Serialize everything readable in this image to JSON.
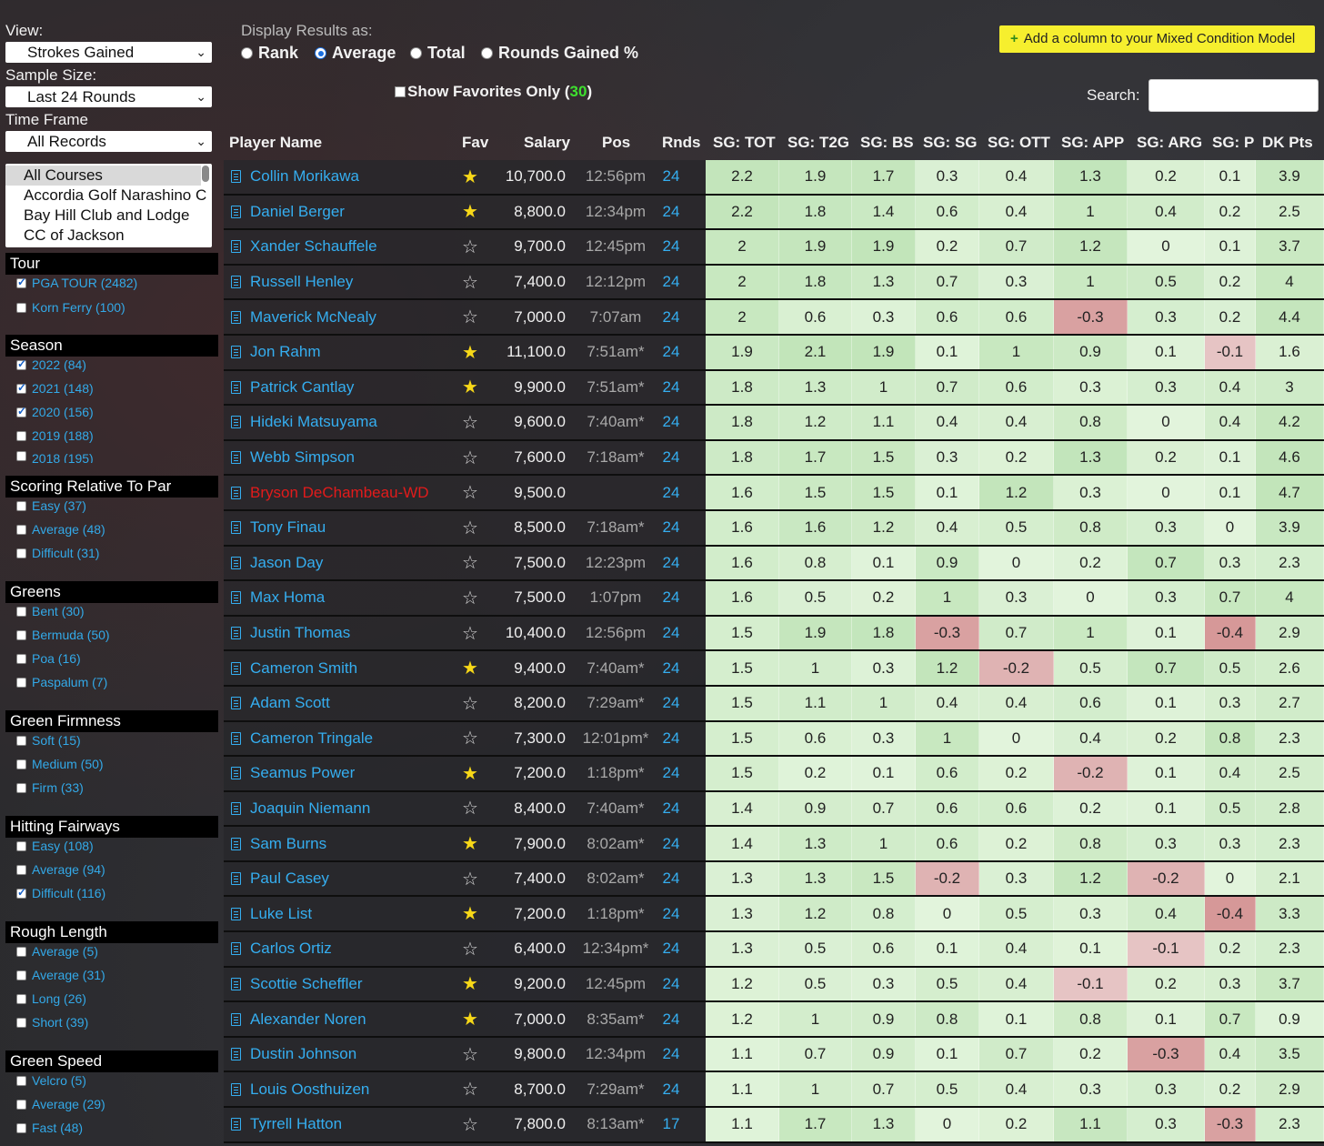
{
  "sidebar": {
    "view_label": "View:",
    "view_value": "Strokes Gained",
    "sample_label": "Sample Size:",
    "sample_value": "Last 24 Rounds",
    "timeframe_label": "Time Frame",
    "timeframe_value": "All Records",
    "courses": [
      "All Courses",
      "Accordia Golf Narashino C",
      "Bay Hill Club and Lodge",
      "CC of Jackson"
    ],
    "sections": [
      {
        "title": "Tour",
        "items": [
          {
            "label": "PGA TOUR (2482)",
            "checked": true
          },
          {
            "label": "Korn Ferry (100)",
            "checked": false
          }
        ]
      },
      {
        "title": "Season",
        "items": [
          {
            "label": "2022 (84)",
            "checked": true
          },
          {
            "label": "2021 (148)",
            "checked": true
          },
          {
            "label": "2020 (156)",
            "checked": true
          },
          {
            "label": "2019 (188)",
            "checked": false
          },
          {
            "label": "2018 (195)",
            "checked": false
          }
        ]
      },
      {
        "title": "Scoring Relative To Par",
        "items": [
          {
            "label": "Easy (37)",
            "checked": false
          },
          {
            "label": "Average (48)",
            "checked": false
          },
          {
            "label": "Difficult (31)",
            "checked": false
          }
        ]
      },
      {
        "title": "Greens",
        "items": [
          {
            "label": "Bent (30)",
            "checked": false
          },
          {
            "label": "Bermuda (50)",
            "checked": false
          },
          {
            "label": "Poa (16)",
            "checked": false
          },
          {
            "label": "Paspalum (7)",
            "checked": false
          }
        ]
      },
      {
        "title": "Green Firmness",
        "items": [
          {
            "label": "Soft (15)",
            "checked": false
          },
          {
            "label": "Medium (50)",
            "checked": false
          },
          {
            "label": "Firm (33)",
            "checked": false
          }
        ]
      },
      {
        "title": "Hitting Fairways",
        "items": [
          {
            "label": "Easy (108)",
            "checked": false
          },
          {
            "label": "Average (94)",
            "checked": false
          },
          {
            "label": "Difficult (116)",
            "checked": true
          }
        ]
      },
      {
        "title": "Rough Length",
        "items": [
          {
            "label": "Average (5)",
            "checked": false
          },
          {
            "label": "Average (31)",
            "checked": false
          },
          {
            "label": "Long (26)",
            "checked": false
          },
          {
            "label": "Short (39)",
            "checked": false
          }
        ]
      },
      {
        "title": "Green Speed",
        "items": [
          {
            "label": "Velcro (5)",
            "checked": false
          },
          {
            "label": "Average (29)",
            "checked": false
          },
          {
            "label": "Fast (48)",
            "checked": false
          }
        ]
      }
    ]
  },
  "display": {
    "label": "Display Results as:",
    "options": [
      {
        "label": "Rank",
        "selected": false
      },
      {
        "label": "Average",
        "selected": true
      },
      {
        "label": "Total",
        "selected": false
      },
      {
        "label": "Rounds Gained %",
        "selected": false
      }
    ],
    "favorites_label": "Show Favorites Only (",
    "favorites_count": "30",
    "favorites_close": ")"
  },
  "toolbar": {
    "add_column_label": "Add a column to your Mixed Condition Model",
    "search_label": "Search:"
  },
  "table": {
    "headers": [
      "Player Name",
      "Fav",
      "Salary",
      "Pos",
      "Rnds",
      "SG: TOT",
      "SG: T2G",
      "SG: BS",
      "SG: SG",
      "SG: OTT",
      "SG: APP",
      "SG: ARG",
      "SG: P",
      "DK Pts"
    ],
    "rows": [
      {
        "name": "Collin Morikawa",
        "fav": true,
        "salary": "10,700.0",
        "pos": "12:56pm",
        "rnds": "24",
        "sg": [
          "2.2",
          "1.9",
          "1.7",
          "0.3",
          "0.4",
          "1.3",
          "0.2",
          "0.1",
          "3.9"
        ]
      },
      {
        "name": "Daniel Berger",
        "fav": true,
        "salary": "8,800.0",
        "pos": "12:34pm",
        "rnds": "24",
        "sg": [
          "2.2",
          "1.8",
          "1.4",
          "0.6",
          "0.4",
          "1",
          "0.4",
          "0.2",
          "2.5"
        ]
      },
      {
        "name": "Xander Schauffele",
        "fav": false,
        "salary": "9,700.0",
        "pos": "12:45pm",
        "rnds": "24",
        "sg": [
          "2",
          "1.9",
          "1.9",
          "0.2",
          "0.7",
          "1.2",
          "0",
          "0.1",
          "3.7"
        ]
      },
      {
        "name": "Russell Henley",
        "fav": false,
        "salary": "7,400.0",
        "pos": "12:12pm",
        "rnds": "24",
        "sg": [
          "2",
          "1.8",
          "1.3",
          "0.7",
          "0.3",
          "1",
          "0.5",
          "0.2",
          "4"
        ]
      },
      {
        "name": "Maverick McNealy",
        "fav": false,
        "salary": "7,000.0",
        "pos": "7:07am",
        "rnds": "24",
        "sg": [
          "2",
          "0.6",
          "0.3",
          "0.6",
          "0.6",
          "-0.3",
          "0.3",
          "0.2",
          "4.4"
        ]
      },
      {
        "name": "Jon Rahm",
        "fav": true,
        "salary": "11,100.0",
        "pos": "7:51am*",
        "rnds": "24",
        "sg": [
          "1.9",
          "2.1",
          "1.9",
          "0.1",
          "1",
          "0.9",
          "0.1",
          "-0.1",
          "1.6"
        ]
      },
      {
        "name": "Patrick Cantlay",
        "fav": true,
        "salary": "9,900.0",
        "pos": "7:51am*",
        "rnds": "24",
        "sg": [
          "1.8",
          "1.3",
          "1",
          "0.7",
          "0.6",
          "0.3",
          "0.3",
          "0.4",
          "3"
        ]
      },
      {
        "name": "Hideki Matsuyama",
        "fav": false,
        "salary": "9,600.0",
        "pos": "7:40am*",
        "rnds": "24",
        "sg": [
          "1.8",
          "1.2",
          "1.1",
          "0.4",
          "0.4",
          "0.8",
          "0",
          "0.4",
          "4.2"
        ]
      },
      {
        "name": "Webb Simpson",
        "fav": false,
        "salary": "7,600.0",
        "pos": "7:18am*",
        "rnds": "24",
        "sg": [
          "1.8",
          "1.7",
          "1.5",
          "0.3",
          "0.2",
          "1.3",
          "0.2",
          "0.1",
          "4.6"
        ]
      },
      {
        "name": "Bryson DeChambeau-WD",
        "fav": false,
        "wd": true,
        "salary": "9,500.0",
        "pos": "",
        "rnds": "24",
        "sg": [
          "1.6",
          "1.5",
          "1.5",
          "0.1",
          "1.2",
          "0.3",
          "0",
          "0.1",
          "4.7"
        ]
      },
      {
        "name": "Tony Finau",
        "fav": false,
        "salary": "8,500.0",
        "pos": "7:18am*",
        "rnds": "24",
        "sg": [
          "1.6",
          "1.6",
          "1.2",
          "0.4",
          "0.5",
          "0.8",
          "0.3",
          "0",
          "3.9"
        ]
      },
      {
        "name": "Jason Day",
        "fav": false,
        "salary": "7,500.0",
        "pos": "12:23pm",
        "rnds": "24",
        "sg": [
          "1.6",
          "0.8",
          "0.1",
          "0.9",
          "0",
          "0.2",
          "0.7",
          "0.3",
          "2.3"
        ]
      },
      {
        "name": "Max Homa",
        "fav": false,
        "salary": "7,500.0",
        "pos": "1:07pm",
        "rnds": "24",
        "sg": [
          "1.6",
          "0.5",
          "0.2",
          "1",
          "0.3",
          "0",
          "0.3",
          "0.7",
          "4"
        ]
      },
      {
        "name": "Justin Thomas",
        "fav": false,
        "salary": "10,400.0",
        "pos": "12:56pm",
        "rnds": "24",
        "sg": [
          "1.5",
          "1.9",
          "1.8",
          "-0.3",
          "0.7",
          "1",
          "0.1",
          "-0.4",
          "2.9"
        ]
      },
      {
        "name": "Cameron Smith",
        "fav": true,
        "salary": "9,400.0",
        "pos": "7:40am*",
        "rnds": "24",
        "sg": [
          "1.5",
          "1",
          "0.3",
          "1.2",
          "-0.2",
          "0.5",
          "0.7",
          "0.5",
          "2.6"
        ]
      },
      {
        "name": "Adam Scott",
        "fav": false,
        "salary": "8,200.0",
        "pos": "7:29am*",
        "rnds": "24",
        "sg": [
          "1.5",
          "1.1",
          "1",
          "0.4",
          "0.4",
          "0.6",
          "0.1",
          "0.3",
          "2.7"
        ]
      },
      {
        "name": "Cameron Tringale",
        "fav": false,
        "salary": "7,300.0",
        "pos": "12:01pm*",
        "rnds": "24",
        "sg": [
          "1.5",
          "0.6",
          "0.3",
          "1",
          "0",
          "0.4",
          "0.2",
          "0.8",
          "2.3"
        ]
      },
      {
        "name": "Seamus Power",
        "fav": true,
        "salary": "7,200.0",
        "pos": "1:18pm*",
        "rnds": "24",
        "sg": [
          "1.5",
          "0.2",
          "0.1",
          "0.6",
          "0.2",
          "-0.2",
          "0.1",
          "0.4",
          "2.5"
        ]
      },
      {
        "name": "Joaquin Niemann",
        "fav": false,
        "salary": "8,400.0",
        "pos": "7:40am*",
        "rnds": "24",
        "sg": [
          "1.4",
          "0.9",
          "0.7",
          "0.6",
          "0.6",
          "0.2",
          "0.1",
          "0.5",
          "2.8"
        ]
      },
      {
        "name": "Sam Burns",
        "fav": true,
        "salary": "7,900.0",
        "pos": "8:02am*",
        "rnds": "24",
        "sg": [
          "1.4",
          "1.3",
          "1",
          "0.6",
          "0.2",
          "0.8",
          "0.3",
          "0.3",
          "2.3"
        ]
      },
      {
        "name": "Paul Casey",
        "fav": false,
        "salary": "7,400.0",
        "pos": "8:02am*",
        "rnds": "24",
        "sg": [
          "1.3",
          "1.3",
          "1.5",
          "-0.2",
          "0.3",
          "1.2",
          "-0.2",
          "0",
          "2.1"
        ]
      },
      {
        "name": "Luke List",
        "fav": true,
        "salary": "7,200.0",
        "pos": "1:18pm*",
        "rnds": "24",
        "sg": [
          "1.3",
          "1.2",
          "0.8",
          "0",
          "0.5",
          "0.3",
          "0.4",
          "-0.4",
          "3.3"
        ]
      },
      {
        "name": "Carlos Ortiz",
        "fav": false,
        "salary": "6,400.0",
        "pos": "12:34pm*",
        "rnds": "24",
        "sg": [
          "1.3",
          "0.5",
          "0.6",
          "0.1",
          "0.4",
          "0.1",
          "-0.1",
          "0.2",
          "2.3"
        ]
      },
      {
        "name": "Scottie Scheffler",
        "fav": true,
        "salary": "9,200.0",
        "pos": "12:45pm",
        "rnds": "24",
        "sg": [
          "1.2",
          "0.5",
          "0.3",
          "0.5",
          "0.4",
          "-0.1",
          "0.2",
          "0.3",
          "3.7"
        ]
      },
      {
        "name": "Alexander Noren",
        "fav": true,
        "salary": "7,000.0",
        "pos": "8:35am*",
        "rnds": "24",
        "sg": [
          "1.2",
          "1",
          "0.9",
          "0.8",
          "0.1",
          "0.8",
          "0.1",
          "0.7",
          "0.9"
        ]
      },
      {
        "name": "Dustin Johnson",
        "fav": false,
        "salary": "9,800.0",
        "pos": "12:34pm",
        "rnds": "24",
        "sg": [
          "1.1",
          "0.7",
          "0.9",
          "0.1",
          "0.7",
          "0.2",
          "-0.3",
          "0.4",
          "3.5"
        ]
      },
      {
        "name": "Louis Oosthuizen",
        "fav": false,
        "salary": "8,700.0",
        "pos": "7:29am*",
        "rnds": "24",
        "sg": [
          "1.1",
          "1",
          "0.7",
          "0.5",
          "0.4",
          "0.3",
          "0.3",
          "0.2",
          "2.9"
        ]
      },
      {
        "name": "Tyrrell Hatton",
        "fav": false,
        "salary": "7,800.0",
        "pos": "8:13am*",
        "rnds": "17",
        "sg": [
          "1.1",
          "1.7",
          "1.3",
          "0",
          "0.2",
          "1.1",
          "0.3",
          "-0.3",
          "2.3"
        ]
      }
    ]
  },
  "colors": {
    "link": "#35aef0",
    "star_on": "#f7d818",
    "withdrawn": "#e21b1b",
    "favorites_count": "#3ee02f",
    "add_button": "#f6ef2e"
  }
}
